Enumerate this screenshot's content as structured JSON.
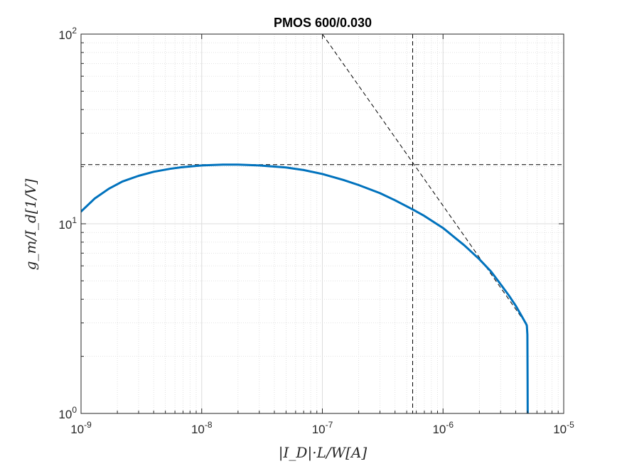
{
  "chart_data": {
    "type": "line",
    "title": "PMOS 600/0.030",
    "xlabel": "|I_D|·L/W[A]",
    "ylabel": "g_m/I_d[1/V]",
    "xscale": "log",
    "yscale": "log",
    "xlim": [
      1e-09,
      1e-05
    ],
    "ylim": [
      1,
      100
    ],
    "grid": true,
    "minor_grid": true,
    "x_ticks": [
      {
        "base": "10",
        "exp": "-9",
        "value": 1e-09
      },
      {
        "base": "10",
        "exp": "-8",
        "value": 1e-08
      },
      {
        "base": "10",
        "exp": "-7",
        "value": 1e-07
      },
      {
        "base": "10",
        "exp": "-6",
        "value": 1e-06
      },
      {
        "base": "10",
        "exp": "-5",
        "value": 1e-05
      }
    ],
    "y_ticks": [
      {
        "base": "10",
        "exp": "0",
        "value": 1
      },
      {
        "base": "10",
        "exp": "1",
        "value": 10
      },
      {
        "base": "10",
        "exp": "2",
        "value": 100
      }
    ],
    "series": [
      {
        "color": "#0072BD",
        "x": [
          1e-09,
          1.3e-09,
          1.7e-09,
          2.2e-09,
          3e-09,
          4e-09,
          5.5e-09,
          7e-09,
          1e-08,
          1.5e-08,
          2e-08,
          3e-08,
          5e-08,
          7e-08,
          1e-07,
          1.5e-07,
          2e-07,
          3e-07,
          4e-07,
          5.6e-07,
          7e-07,
          1e-06,
          1.5e-06,
          2e-06,
          2.5e-06,
          3e-06,
          3.5e-06,
          4e-06,
          4.5e-06,
          4.9e-06,
          4.95e-06,
          5e-06,
          5.02e-06,
          5.03e-06
        ],
        "y": [
          11.6,
          13.6,
          15.3,
          16.7,
          17.9,
          18.8,
          19.5,
          19.9,
          20.3,
          20.5,
          20.5,
          20.3,
          19.8,
          19.2,
          18.3,
          17.0,
          16.0,
          14.5,
          13.3,
          11.9,
          11.0,
          9.5,
          7.7,
          6.5,
          5.6,
          4.8,
          4.2,
          3.7,
          3.25,
          2.95,
          2.9,
          2.6,
          1.5,
          1.0
        ],
        "linewidth": 3
      }
    ],
    "annotations": [
      {
        "type": "hline",
        "y": 20.5,
        "style": "dashed",
        "color": "#000000"
      },
      {
        "type": "vline",
        "x": 5.6e-07,
        "style": "dashed",
        "color": "#000000"
      },
      {
        "type": "line",
        "x": [
          1e-07,
          5e-06
        ],
        "y": [
          100,
          2.9
        ],
        "style": "dashed",
        "color": "#000000"
      }
    ]
  }
}
